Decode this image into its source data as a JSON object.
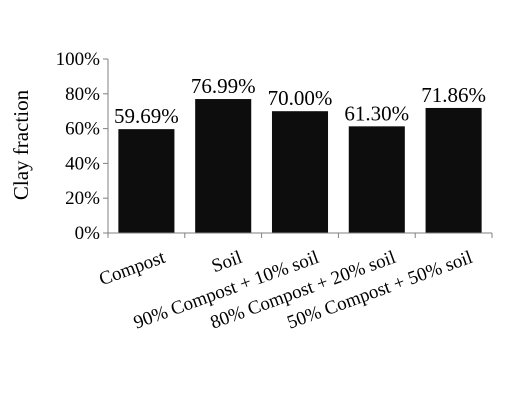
{
  "chart_data": {
    "type": "bar",
    "title": "",
    "xlabel": "",
    "ylabel": "Clay fraction",
    "categories": [
      "Compost",
      "Soil",
      "90% Compost + 10% soil",
      "80% Compost + 20% soil",
      "50% Compost + 50% soil"
    ],
    "values": [
      59.69,
      76.99,
      70.0,
      61.3,
      71.86
    ],
    "data_labels": [
      "59.69%",
      "76.99%",
      "70.00%",
      "61.30%",
      "71.86%"
    ],
    "ylim": [
      0,
      100
    ],
    "yticks": [
      0,
      20,
      40,
      60,
      80,
      100
    ],
    "ytick_labels": [
      "0%",
      "20%",
      "40%",
      "60%",
      "80%",
      "100%"
    ],
    "grid": false,
    "legend": "none",
    "bar_color": "#0d0d0d"
  }
}
